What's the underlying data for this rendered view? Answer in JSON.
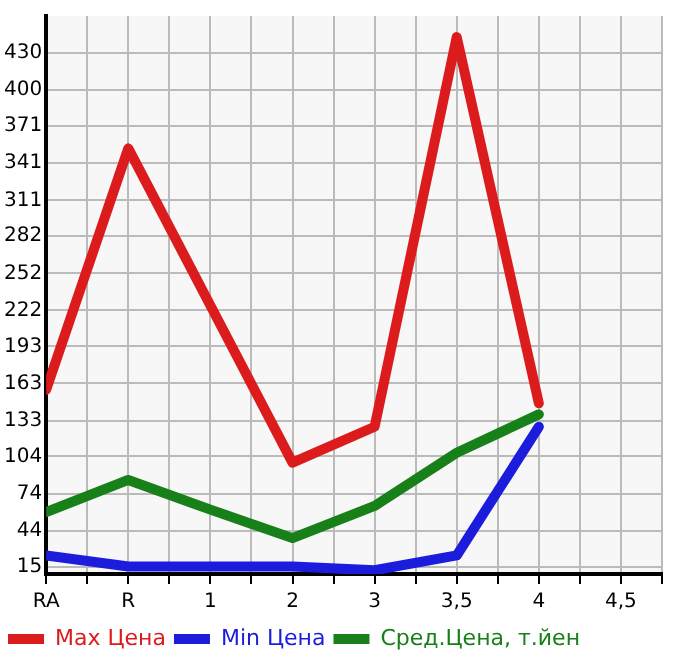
{
  "chart_data": {
    "type": "line",
    "categories": [
      "RA",
      "R",
      "1",
      "2",
      "3",
      "3,5",
      "4",
      "4,5"
    ],
    "series": [
      {
        "name": "Max Цена",
        "color": "#dc1c1c",
        "values": [
          158,
          353,
          226,
          99,
          128,
          443,
          147,
          null
        ]
      },
      {
        "name": "Min Цена",
        "color": "#1c1cdc",
        "values": [
          24,
          15,
          15,
          15,
          12,
          24,
          128,
          null
        ]
      },
      {
        "name": "Сред.Цена, т.йен",
        "color": "#188018",
        "values": [
          59,
          85,
          61,
          38,
          64,
          107,
          138,
          null
        ]
      }
    ],
    "ylim": [
      9,
      460
    ],
    "yticks": [
      15,
      44,
      74,
      104,
      133,
      163,
      193,
      222,
      252,
      282,
      311,
      341,
      371,
      400,
      430
    ],
    "grid": true,
    "legend": "bottom",
    "marker": "none",
    "line_style": "solid"
  }
}
